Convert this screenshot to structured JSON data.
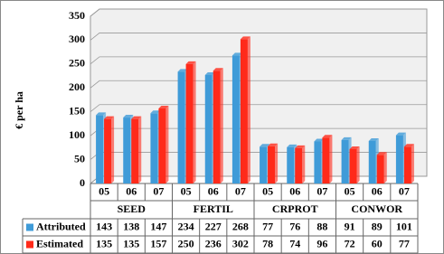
{
  "chart_data": {
    "type": "bar",
    "y_label": "€ per ha",
    "groups": [
      "SEED",
      "FERTIL",
      "CRPROT",
      "CONWOR"
    ],
    "categories": [
      "05",
      "06",
      "07",
      "05",
      "06",
      "07",
      "05",
      "06",
      "07",
      "05",
      "06",
      "07"
    ],
    "series": [
      {
        "name": "Attributed",
        "color": "#3f9bd8",
        "values": [
          143,
          138,
          147,
          234,
          227,
          268,
          77,
          76,
          88,
          91,
          89,
          101
        ]
      },
      {
        "name": "Estimated",
        "color": "#ff2a1a",
        "values": [
          135,
          135,
          157,
          250,
          236,
          302,
          78,
          74,
          96,
          72,
          60,
          77
        ]
      }
    ],
    "ylim": [
      0,
      350
    ],
    "yticks": [
      0,
      50,
      100,
      150,
      200,
      250,
      300,
      350
    ],
    "grid": true
  }
}
